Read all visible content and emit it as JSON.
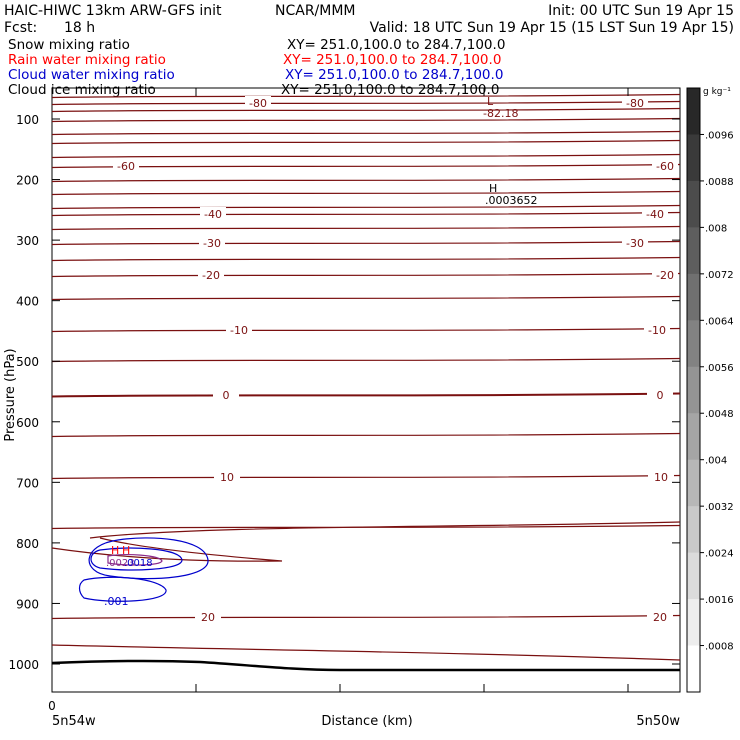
{
  "header": {
    "model": "HAIC-HIWC 13km ARW-GFS init",
    "center": "NCAR/MMM",
    "init": "Init: 00 UTC Sun 19 Apr 15",
    "fcst_label": "Fcst:",
    "fcst_value": "18 h",
    "valid": "Valid: 18 UTC Sun 19 Apr 15 (15 LST Sun 19 Apr 15)"
  },
  "fields": [
    {
      "name": "Snow mixing ratio",
      "xy": "XY= 251.0,100.0 to 284.7,100.0",
      "color": "#000000"
    },
    {
      "name": "Rain water mixing ratio",
      "xy": "XY= 251.0,100.0 to 284.7,100.0",
      "color": "#ff0000"
    },
    {
      "name": "Cloud water mixing ratio",
      "xy": "XY= 251.0,100.0 to 284.7,100.0",
      "color": "#0000cc"
    },
    {
      "name": "Cloud ice mixing ratio",
      "xy": "XY= 251.0,100.0 to 284.7,100.0",
      "color": "#000000"
    }
  ],
  "chart_data": {
    "type": "contour-cross-section",
    "ylabel": "Pressure (hPa)",
    "xlabel": "Distance (km)",
    "ylim": [
      1048,
      50
    ],
    "yticks": [
      100,
      200,
      300,
      400,
      500,
      600,
      700,
      800,
      900,
      1000
    ],
    "x_start_label": "0",
    "x_left_label": "5n54w",
    "x_right_label": "5n50w",
    "temperature_contours": [
      {
        "level": -80,
        "pressure": [
          103,
          103,
          103
        ],
        "labeled": true
      },
      {
        "level": -70,
        "pressure": [
          142,
          142,
          142
        ],
        "labeled": false
      },
      {
        "level": -60,
        "pressure": [
          176,
          176,
          176
        ],
        "labeled": true
      },
      {
        "level": -50,
        "pressure": [
          207,
          207,
          207
        ],
        "labeled": false
      },
      {
        "level": -40,
        "pressure": [
          231,
          231,
          231
        ],
        "labeled": true
      },
      {
        "level": -30,
        "pressure": [
          260,
          260,
          260
        ],
        "labeled": true
      },
      {
        "level": -20,
        "pressure": [
          292,
          292,
          292
        ],
        "labeled": true
      },
      {
        "level": -10,
        "pressure": [
          379,
          379,
          379
        ],
        "labeled": true
      },
      {
        "level": 0,
        "pressure": [
          554,
          554,
          554
        ],
        "labeled": true
      },
      {
        "level": 10,
        "pressure": [
          675,
          675,
          675
        ],
        "labeled": true
      },
      {
        "level": 20,
        "pressure": [
          905,
          905,
          905
        ],
        "labeled": true
      }
    ],
    "contour_labels": [
      "-80",
      "-60",
      "-40",
      "-30",
      "-20",
      "-10",
      "0",
      "10",
      "20"
    ],
    "extrema": [
      {
        "type": "L",
        "value": "-82.18"
      },
      {
        "type": "H",
        "value": ".0003652"
      },
      {
        "type": "H",
        "value": ".0023"
      },
      {
        "type": "H",
        "value": ".0018"
      }
    ],
    "cloud_water_label": ".001",
    "colorbar": {
      "unit": "g kg⁻¹",
      "ticks": [
        ".0096",
        ".0088",
        ".008",
        ".0072",
        ".0064",
        ".0056",
        ".0048",
        ".004",
        ".0032",
        ".0024",
        ".0016",
        ".0008"
      ]
    },
    "colors": {
      "temperature": "#7a1010",
      "rain": "#ff0000",
      "cloud_water": "#0000cc",
      "terrain": "#000000"
    }
  }
}
